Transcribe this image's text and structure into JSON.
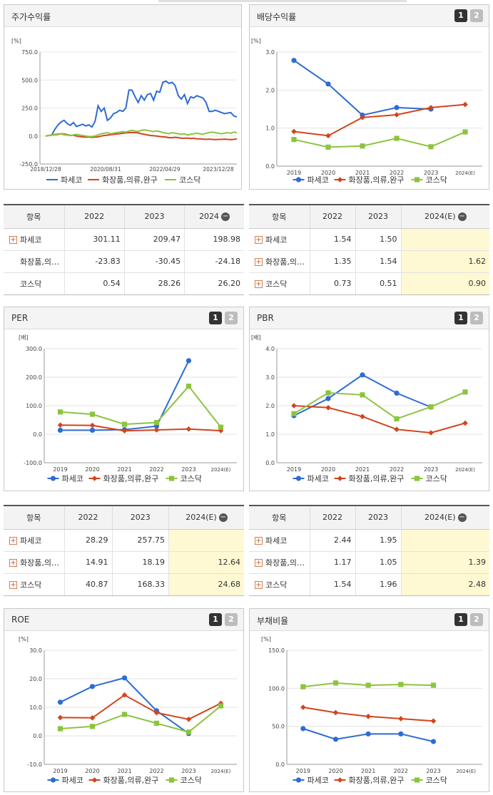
{
  "legend_common": [
    "파세코",
    "화장품,의류,완구",
    "코스닥"
  ],
  "colors": {
    "s1": "#2e6bd4",
    "s2": "#d3441c",
    "s3": "#8cc43f"
  },
  "tab_buttons": [
    "1",
    "2"
  ],
  "tables": {
    "header_label": "항목",
    "minus_icon": "−",
    "plus_icon": "+",
    "returns": {
      "cols": [
        "2022",
        "2023",
        "2024"
      ],
      "rows": [
        {
          "name": "파세코",
          "plus": true,
          "vals": [
            "301.11",
            "209.47",
            "198.98"
          ]
        },
        {
          "name": "화장품,의…",
          "plus": false,
          "vals": [
            "-23.83",
            "-30.45",
            "-24.18"
          ]
        },
        {
          "name": "코스닥",
          "plus": false,
          "vals": [
            "0.54",
            "28.26",
            "26.20"
          ]
        }
      ]
    },
    "dividend": {
      "cols": [
        "2022",
        "2023",
        "2024(E)"
      ],
      "rows": [
        {
          "name": "파세코",
          "plus": true,
          "vals": [
            "1.54",
            "1.50",
            ""
          ]
        },
        {
          "name": "화장품,의…",
          "plus": true,
          "vals": [
            "1.35",
            "1.54",
            "1.62"
          ]
        },
        {
          "name": "코스닥",
          "plus": true,
          "vals": [
            "0.73",
            "0.51",
            "0.90"
          ]
        }
      ]
    },
    "per": {
      "cols": [
        "2022",
        "2023",
        "2024(E)"
      ],
      "rows": [
        {
          "name": "파세코",
          "plus": true,
          "vals": [
            "28.29",
            "257.75",
            ""
          ]
        },
        {
          "name": "화장품,의…",
          "plus": true,
          "vals": [
            "14.91",
            "18.19",
            "12.64"
          ]
        },
        {
          "name": "코스닥",
          "plus": true,
          "vals": [
            "40.87",
            "168.33",
            "24.68"
          ]
        }
      ]
    },
    "pbr": {
      "cols": [
        "2022",
        "2023",
        "2024(E)"
      ],
      "rows": [
        {
          "name": "파세코",
          "plus": true,
          "vals": [
            "2.44",
            "1.95",
            ""
          ]
        },
        {
          "name": "화장품,의…",
          "plus": true,
          "vals": [
            "1.17",
            "1.05",
            "1.39"
          ]
        },
        {
          "name": "코스닥",
          "plus": true,
          "vals": [
            "1.54",
            "1.96",
            "2.48"
          ]
        }
      ]
    }
  },
  "chart_data": [
    {
      "id": "returns",
      "type": "line",
      "title": "주가수익률",
      "unit": "[%]",
      "ylim": [
        -250,
        750
      ],
      "yticks": [
        "750.0",
        "500.0",
        "250.0",
        "0.0",
        "-250.0"
      ],
      "x_tick_labels": [
        "2018/12/28",
        "2020/08/31",
        "2022/04/29",
        "2023/12/28"
      ],
      "series": [
        {
          "name": "파세코",
          "values": [
            0,
            5,
            10,
            60,
            100,
            125,
            140,
            110,
            95,
            120,
            85,
            95,
            105,
            90,
            100,
            80,
            130,
            270,
            220,
            250,
            140,
            160,
            200,
            210,
            230,
            220,
            250,
            410,
            410,
            350,
            300,
            360,
            320,
            370,
            380,
            320,
            400,
            390,
            480,
            490,
            470,
            480,
            450,
            360,
            330,
            370,
            290,
            350,
            340,
            360,
            350,
            340,
            300,
            220,
            220,
            230,
            220,
            210,
            200,
            205,
            210,
            180,
            170
          ]
        },
        {
          "name": "화장품,의류,완구",
          "values": [
            0,
            5,
            10,
            12,
            15,
            20,
            18,
            12,
            5,
            8,
            0,
            -5,
            -8,
            -10,
            -10,
            -12,
            -10,
            -8,
            0,
            5,
            8,
            12,
            15,
            18,
            20,
            25,
            28,
            30,
            32,
            30,
            28,
            20,
            15,
            10,
            5,
            2,
            0,
            -5,
            -8,
            -10,
            -15,
            -15,
            -12,
            -15,
            -20,
            -20,
            -18,
            -22,
            -20,
            -25,
            -25,
            -28,
            -30,
            -28,
            -30,
            -32,
            -30,
            -30,
            -28,
            -30,
            -32,
            -30,
            -25
          ]
        },
        {
          "name": "코스닥",
          "values": [
            0,
            5,
            10,
            15,
            20,
            18,
            12,
            8,
            5,
            10,
            15,
            10,
            5,
            0,
            -5,
            -5,
            0,
            10,
            20,
            25,
            30,
            20,
            25,
            30,
            35,
            40,
            35,
            45,
            50,
            45,
            40,
            50,
            55,
            50,
            45,
            40,
            45,
            40,
            30,
            25,
            20,
            30,
            25,
            20,
            15,
            20,
            10,
            15,
            20,
            25,
            20,
            15,
            25,
            30,
            35,
            30,
            25,
            20,
            25,
            30,
            25,
            35,
            30
          ]
        }
      ]
    },
    {
      "id": "dividend",
      "type": "line",
      "title": "배당수익률",
      "unit": "[%]",
      "ylim": [
        0,
        3
      ],
      "yticks": [
        "3.0",
        "2.0",
        "1.0",
        "0.0"
      ],
      "categories": [
        "2019",
        "2020",
        "2021",
        "2022",
        "2023",
        "2024(E)"
      ],
      "series": [
        {
          "name": "파세코",
          "values": [
            2.78,
            2.16,
            1.34,
            1.54,
            1.5,
            null
          ]
        },
        {
          "name": "화장품,의류,완구",
          "values": [
            0.91,
            0.8,
            1.28,
            1.35,
            1.54,
            1.62
          ]
        },
        {
          "name": "코스닥",
          "values": [
            0.7,
            0.5,
            0.53,
            0.73,
            0.51,
            0.9
          ]
        }
      ]
    },
    {
      "id": "per",
      "type": "line",
      "title": "PER",
      "unit": "[배]",
      "ylim": [
        -100,
        300
      ],
      "yticks": [
        "300.0",
        "200.0",
        "100.0",
        "0.0",
        "-100.0"
      ],
      "categories": [
        "2019",
        "2020",
        "2021",
        "2022",
        "2023",
        "2024(E)"
      ],
      "series": [
        {
          "name": "파세코",
          "values": [
            14,
            14,
            16,
            28.29,
            257.75,
            null
          ]
        },
        {
          "name": "화장품,의류,완구",
          "values": [
            32,
            31,
            12,
            14.91,
            18.19,
            12.64
          ]
        },
        {
          "name": "코스닥",
          "values": [
            78,
            70,
            35,
            40.87,
            168.33,
            24.68
          ]
        }
      ]
    },
    {
      "id": "pbr",
      "type": "line",
      "title": "PBR",
      "unit": "[배]",
      "ylim": [
        0,
        4
      ],
      "yticks": [
        "4.0",
        "3.0",
        "2.0",
        "1.0",
        "0.0"
      ],
      "categories": [
        "2019",
        "2020",
        "2021",
        "2022",
        "2023",
        "2024(E)"
      ],
      "series": [
        {
          "name": "파세코",
          "values": [
            1.65,
            2.25,
            3.08,
            2.44,
            1.95,
            null
          ]
        },
        {
          "name": "화장품,의류,완구",
          "values": [
            2.0,
            1.93,
            1.62,
            1.17,
            1.05,
            1.39
          ]
        },
        {
          "name": "코스닥",
          "values": [
            1.72,
            2.45,
            2.38,
            1.54,
            1.96,
            2.48
          ]
        }
      ]
    },
    {
      "id": "roe",
      "type": "line",
      "title": "ROE",
      "unit": "[%]",
      "ylim": [
        -10,
        30
      ],
      "yticks": [
        "30.0",
        "20.0",
        "10.0",
        "0.0",
        "-10.0"
      ],
      "categories": [
        "2019",
        "2020",
        "2021",
        "2022",
        "2023",
        "2024(E)"
      ],
      "series": [
        {
          "name": "파세코",
          "values": [
            11.8,
            17.3,
            20.3,
            8.8,
            0.8,
            null
          ]
        },
        {
          "name": "화장품,의류,완구",
          "values": [
            6.4,
            6.3,
            14.3,
            8.1,
            5.8,
            11.4
          ]
        },
        {
          "name": "코스닥",
          "values": [
            2.5,
            3.3,
            7.5,
            4.4,
            1.3,
            10.5
          ]
        }
      ]
    },
    {
      "id": "debt",
      "type": "line",
      "title": "부채비율",
      "unit": "[%]",
      "ylim": [
        0,
        150
      ],
      "yticks": [
        "150.0",
        "100.0",
        "50.0",
        "0.0"
      ],
      "categories": [
        "2019",
        "2020",
        "2021",
        "2022",
        "2023",
        "2024(E)"
      ],
      "series": [
        {
          "name": "파세코",
          "values": [
            47,
            33,
            40,
            40,
            30,
            null
          ]
        },
        {
          "name": "화장품,의류,완구",
          "values": [
            75,
            68,
            63,
            60,
            57,
            null
          ]
        },
        {
          "name": "코스닥",
          "values": [
            102,
            107,
            104,
            105,
            104,
            null
          ]
        }
      ]
    }
  ]
}
